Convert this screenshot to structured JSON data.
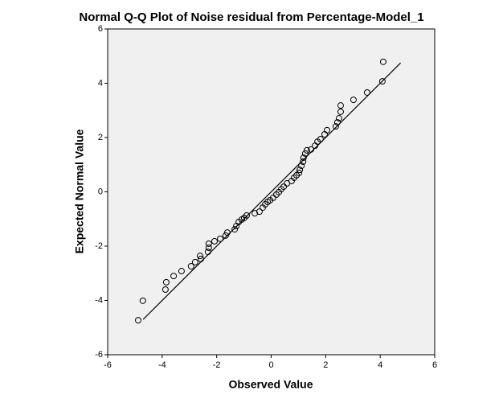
{
  "chart_data": {
    "type": "scatter",
    "title": "Normal Q-Q Plot of Noise residual from Percentage-Model_1",
    "x_label": "Observed Value",
    "y_label": "Expected Normal Value",
    "xlim": [
      -6,
      6
    ],
    "ylim": [
      -6,
      6
    ],
    "xticks": [
      -6,
      -4,
      -2,
      0,
      2,
      4,
      6
    ],
    "yticks": [
      -6,
      -4,
      -2,
      0,
      2,
      4,
      6
    ],
    "background": "#f0f0f0",
    "color": "#000000",
    "series": [
      {
        "x": [
          -4.88,
          -4.71,
          -3.88,
          -3.85,
          -3.58,
          -3.29,
          -2.94,
          -2.79,
          -2.61,
          -2.58,
          -2.32,
          -2.29,
          -2.29,
          -2.08,
          -1.87,
          -1.67,
          -1.61,
          -1.34,
          -1.28,
          -1.19,
          -1.08,
          -0.99,
          -0.9,
          -0.6,
          -0.43,
          -0.31,
          -0.22,
          -0.13,
          -0.04,
          0.07,
          0.19,
          0.28,
          0.37,
          0.46,
          0.58,
          0.75,
          0.84,
          0.93,
          1.02,
          1.05,
          1.11,
          1.17,
          1.19,
          1.25,
          1.31,
          1.46,
          1.61,
          1.7,
          1.81,
          1.96,
          2.05,
          2.37,
          2.43,
          2.49,
          2.55,
          2.55,
          3.02,
          3.52,
          4.08,
          4.11
        ],
        "values": [
          -4.73,
          -4.01,
          -3.6,
          -3.33,
          -3.1,
          -2.92,
          -2.74,
          -2.59,
          -2.36,
          -2.47,
          -2.21,
          -2.06,
          -1.91,
          -1.82,
          -1.73,
          -1.61,
          -1.5,
          -1.38,
          -1.26,
          -1.11,
          -1.02,
          -0.96,
          -0.87,
          -0.79,
          -0.73,
          -0.58,
          -0.46,
          -0.37,
          -0.31,
          -0.22,
          -0.1,
          -0.01,
          0.1,
          0.19,
          0.31,
          0.4,
          0.52,
          0.61,
          0.7,
          0.81,
          0.96,
          1.11,
          1.26,
          1.41,
          1.53,
          1.56,
          1.7,
          1.85,
          1.94,
          2.12,
          2.27,
          2.41,
          2.56,
          2.71,
          2.95,
          3.18,
          3.39,
          3.66,
          4.07,
          4.79
        ]
      },
      {
        "type": "line",
        "x": [
          -4.7,
          4.75
        ],
        "values": [
          -4.7,
          4.75
        ]
      }
    ]
  }
}
